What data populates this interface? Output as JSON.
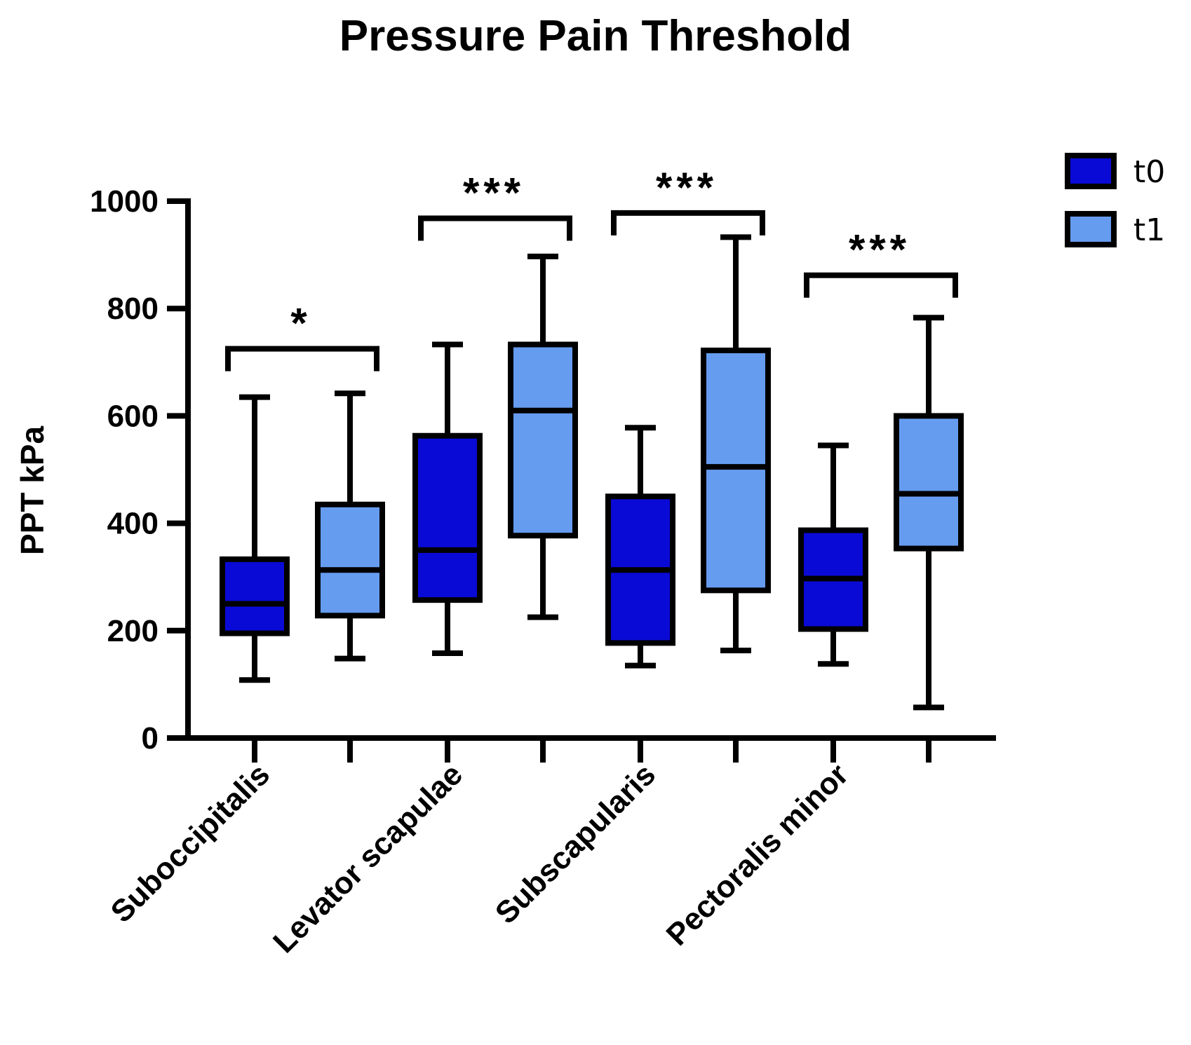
{
  "chart_data": {
    "type": "box",
    "title": "Pressure Pain Threshold",
    "ylabel": "PPT kPa",
    "xlabel": "",
    "ylim": [
      0,
      1000
    ],
    "yticks": [
      0,
      200,
      400,
      600,
      800,
      1000
    ],
    "categories": [
      "Suboccipitalis",
      "Levator scapulae",
      "Subscapularis",
      "Pectoralis minor"
    ],
    "series": [
      {
        "name": "t0",
        "color": "#0a0ad6",
        "boxes": [
          {
            "min": 108,
            "q1": 195,
            "median": 250,
            "q3": 333,
            "max": 635
          },
          {
            "min": 158,
            "q1": 257,
            "median": 350,
            "q3": 563,
            "max": 733
          },
          {
            "min": 135,
            "q1": 177,
            "median": 313,
            "q3": 450,
            "max": 578
          },
          {
            "min": 138,
            "q1": 203,
            "median": 297,
            "q3": 387,
            "max": 545
          }
        ]
      },
      {
        "name": "t1",
        "color": "#669cf0",
        "boxes": [
          {
            "min": 148,
            "q1": 228,
            "median": 313,
            "q3": 435,
            "max": 642
          },
          {
            "min": 225,
            "q1": 377,
            "median": 610,
            "q3": 733,
            "max": 897
          },
          {
            "min": 163,
            "q1": 275,
            "median": 505,
            "q3": 722,
            "max": 933
          },
          {
            "min": 57,
            "q1": 353,
            "median": 455,
            "q3": 600,
            "max": 783
          }
        ]
      }
    ],
    "significance": [
      {
        "category": "Suboccipitalis",
        "label": "*",
        "bracket_y": 725
      },
      {
        "category": "Levator scapulae",
        "label": "***",
        "bracket_y": 968
      },
      {
        "category": "Subscapularis",
        "label": "***",
        "bracket_y": 978
      },
      {
        "category": "Pectoralis minor",
        "label": "***",
        "bracket_y": 862
      }
    ],
    "legend": {
      "position": "top-right",
      "entries": [
        "t0",
        "t1"
      ]
    }
  }
}
